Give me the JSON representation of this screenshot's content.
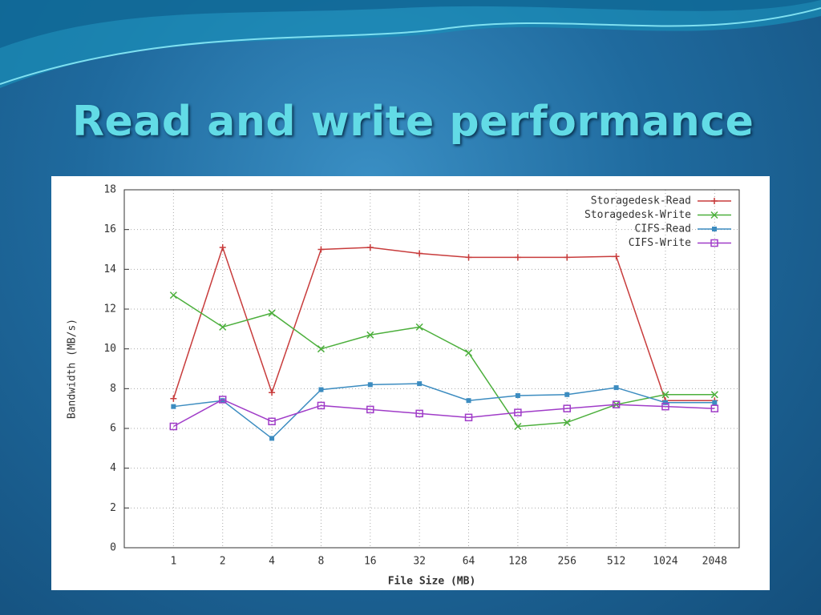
{
  "slide": {
    "title": "Read and write performance"
  },
  "chart_data": {
    "type": "line",
    "x_label": "File Size (MB)",
    "y_label": "Bandwidth (MB/s)",
    "categories": [
      "1",
      "2",
      "4",
      "8",
      "16",
      "32",
      "64",
      "128",
      "256",
      "512",
      "1024",
      "2048"
    ],
    "series": [
      {
        "name": "Storagedesk-Read",
        "color": "#c83c3c",
        "marker": "plus",
        "values": [
          7.5,
          15.1,
          7.8,
          15.0,
          15.1,
          14.8,
          14.6,
          14.6,
          14.6,
          14.65,
          7.4,
          7.4
        ]
      },
      {
        "name": "Storagedesk-Write",
        "color": "#4caf3c",
        "marker": "cross",
        "values": [
          12.7,
          11.1,
          11.8,
          10.0,
          10.7,
          11.1,
          9.8,
          6.1,
          6.3,
          7.2,
          7.7,
          7.7
        ]
      },
      {
        "name": "CIFS-Read",
        "color": "#3c8cc0",
        "marker": "filled-square",
        "values": [
          7.1,
          7.4,
          5.5,
          7.95,
          8.2,
          8.25,
          7.4,
          7.65,
          7.7,
          8.05,
          7.3,
          7.3
        ]
      },
      {
        "name": "CIFS-Write",
        "color": "#a03cc8",
        "marker": "open-square",
        "values": [
          6.1,
          7.45,
          6.35,
          7.15,
          6.95,
          6.75,
          6.55,
          6.8,
          7.0,
          7.2,
          7.1,
          7.0
        ]
      }
    ],
    "ylim": [
      0,
      18
    ],
    "yticks": [
      0,
      2,
      4,
      6,
      8,
      10,
      12,
      14,
      16,
      18
    ],
    "grid": true,
    "legend": "top-right"
  }
}
